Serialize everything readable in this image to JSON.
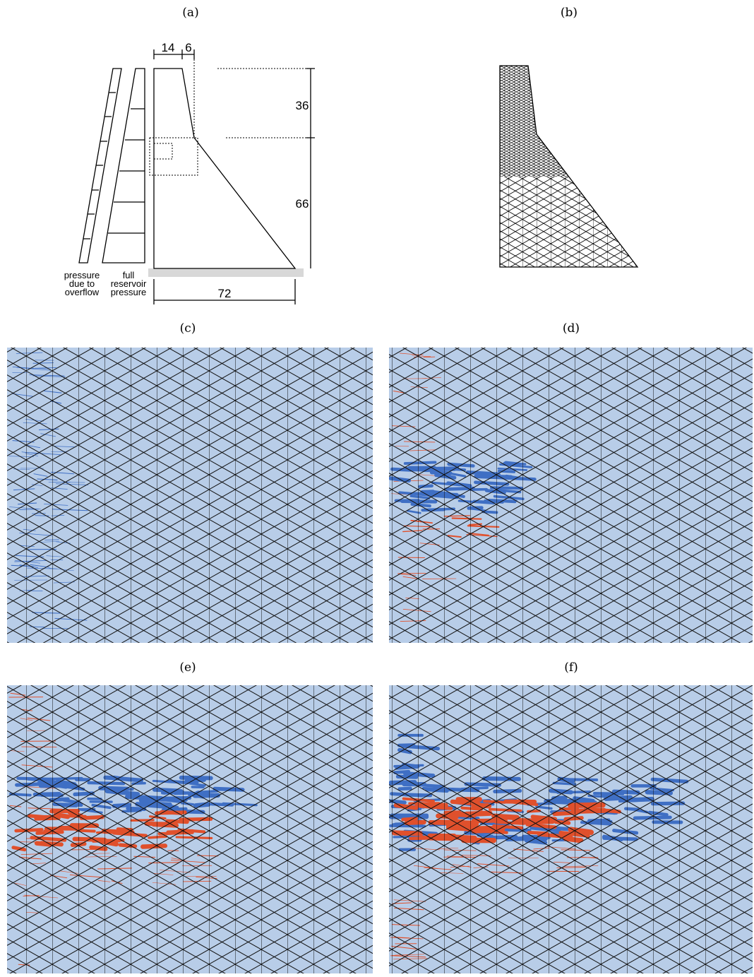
{
  "panels": {
    "a": "(a)",
    "b": "(b)",
    "c": "(c)",
    "d": "(d)",
    "e": "(e)",
    "f": "(f)"
  },
  "dam": {
    "crest_width": 14,
    "overhang": 6,
    "upper_height": 36,
    "lower_height": 66,
    "base_width": 72,
    "overflow_label": [
      "pressure",
      "due to",
      "overflow"
    ],
    "reservoir_label": [
      "full",
      "reservoir",
      "pressure"
    ]
  }
}
